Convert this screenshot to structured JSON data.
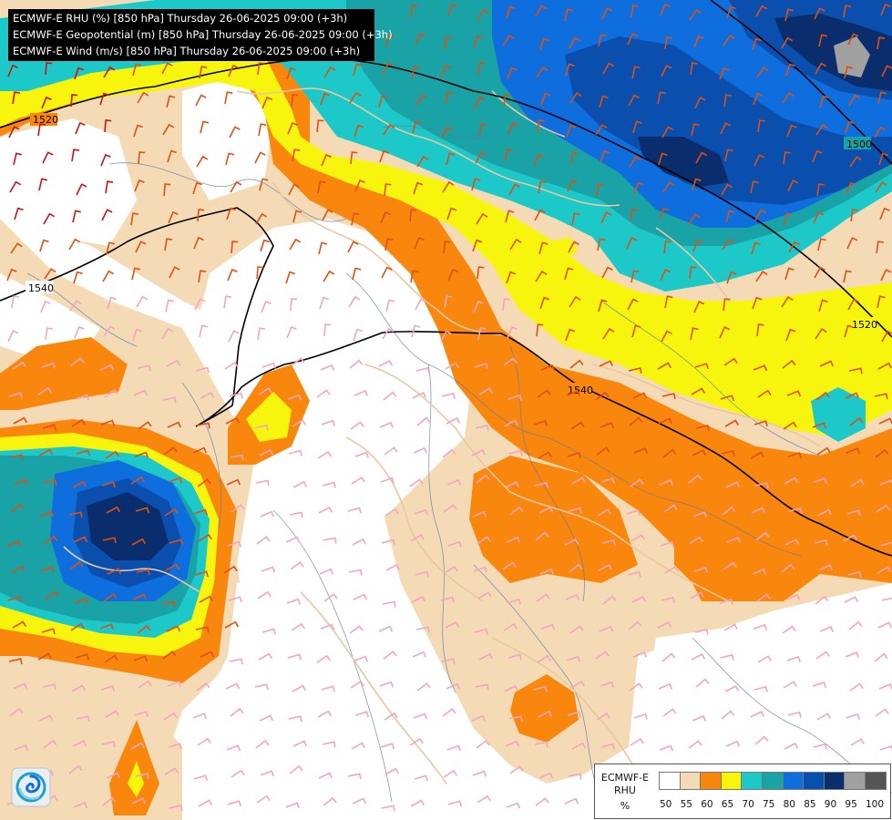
{
  "titles": [
    "ECMWF-E RHU (%) [850 hPa] Thursday 26-06-2025 09:00 (+3h)",
    "ECMWF-E Geopotential (m) [850 hPa] Thursday 26-06-2025 09:00 (+3h)",
    "ECMWF-E Wind (m/s) [850 hPa] Thursday 26-06-2025 09:00 (+3h)"
  ],
  "legend": {
    "model": "ECMWF-E",
    "variable": "RHU",
    "unit": "%",
    "classes": [
      {
        "label": "50",
        "color": "#ffffff"
      },
      {
        "label": "55",
        "color": "#f5dbb5"
      },
      {
        "label": "60",
        "color": "#fa870d"
      },
      {
        "label": "65",
        "color": "#f7f50d"
      },
      {
        "label": "70",
        "color": "#1dc8c8"
      },
      {
        "label": "75",
        "color": "#1aa3a6"
      },
      {
        "label": "80",
        "color": "#0f6ede"
      },
      {
        "label": "85",
        "color": "#0b4fae"
      },
      {
        "label": "90",
        "color": "#0a2d6e"
      },
      {
        "label": "95",
        "color": "#a0a0a0"
      },
      {
        "label": "100",
        "color": "#555555"
      }
    ]
  },
  "isolines": [
    {
      "value": "1520",
      "label": "1520"
    },
    {
      "value": "1500",
      "label": "1500"
    },
    {
      "value": "1540",
      "label": "1540"
    }
  ],
  "colors": {
    "barb_moist": "#e05010",
    "barb_dry": "#f2a5c0",
    "barb_very_moist": "#c81414",
    "borders": "#e8c8a0",
    "rivers": "#5a7aa8",
    "geopotential": "#000000"
  },
  "logo_icon": "swirl-logo-icon"
}
